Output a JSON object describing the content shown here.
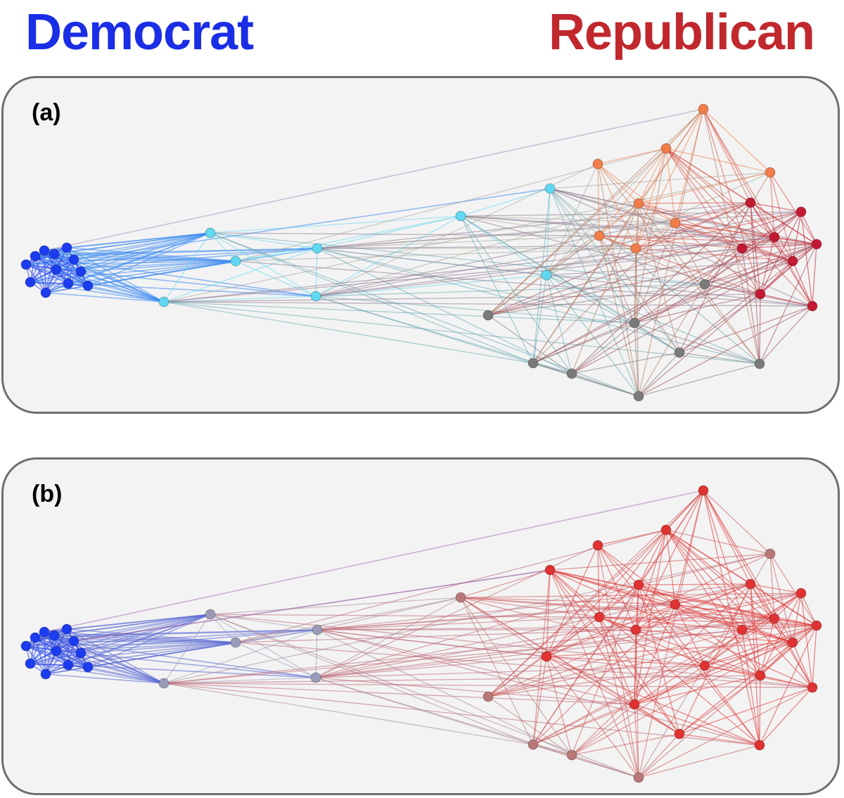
{
  "header": {
    "left_label": "Democrat",
    "right_label": "Republican",
    "left_color": "#1a2ee6",
    "right_color": "#c0282d"
  },
  "panels": [
    {
      "id": "a",
      "label": "(a)"
    },
    {
      "id": "b",
      "label": "(b)"
    }
  ],
  "colors": {
    "democrat": "#1c3cf0",
    "cyan": "#5fd8f0",
    "orange": "#f07d4a",
    "crimson": "#c21a32",
    "gray": "#7a7a7a",
    "red": "#e03232",
    "mauve": "#b87878",
    "lilac": "#9a9ab8",
    "panel_bg": "#f3f3f3",
    "panel_border": "#6f6f6f"
  }
}
